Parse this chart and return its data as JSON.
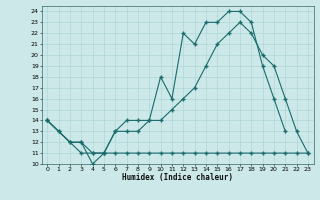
{
  "xlabel": "Humidex (Indice chaleur)",
  "bg_color": "#cce8e8",
  "line_color": "#1a6b6b",
  "grid_color": "#b0d8d8",
  "xlim": [
    -0.5,
    23.5
  ],
  "ylim": [
    10,
    24.5
  ],
  "xticks": [
    0,
    1,
    2,
    3,
    4,
    5,
    6,
    7,
    8,
    9,
    10,
    11,
    12,
    13,
    14,
    15,
    16,
    17,
    18,
    19,
    20,
    21,
    22,
    23
  ],
  "yticks": [
    10,
    11,
    12,
    13,
    14,
    15,
    16,
    17,
    18,
    19,
    20,
    21,
    22,
    23,
    24
  ],
  "line1_x": [
    0,
    1,
    2,
    3,
    4,
    5,
    6,
    7,
    8,
    9,
    10,
    11,
    12,
    13,
    14,
    15,
    16,
    17,
    18,
    19,
    20,
    21,
    22,
    23
  ],
  "line1_y": [
    14,
    13,
    12,
    12,
    11,
    11,
    13,
    13,
    13,
    14,
    14,
    15,
    16,
    17,
    19,
    21,
    22,
    23,
    22,
    20,
    19,
    16,
    13,
    11
  ],
  "line2_x": [
    0,
    1,
    2,
    3,
    4,
    5,
    6,
    7,
    8,
    9,
    10,
    11,
    12,
    13,
    14,
    15,
    16,
    17,
    18,
    19,
    20,
    21
  ],
  "line2_y": [
    14,
    13,
    12,
    12,
    10,
    11,
    13,
    14,
    14,
    14,
    18,
    16,
    22,
    21,
    23,
    23,
    24,
    24,
    23,
    19,
    16,
    13
  ],
  "line3_x": [
    0,
    3,
    4,
    5,
    6,
    7,
    8,
    9,
    10,
    11,
    12,
    13,
    14,
    15,
    16,
    17,
    18,
    19,
    20,
    21,
    22,
    23
  ],
  "line3_y": [
    14,
    11,
    11,
    11,
    11,
    11,
    11,
    11,
    11,
    11,
    11,
    11,
    11,
    11,
    11,
    11,
    11,
    11,
    11,
    11,
    11,
    11
  ]
}
